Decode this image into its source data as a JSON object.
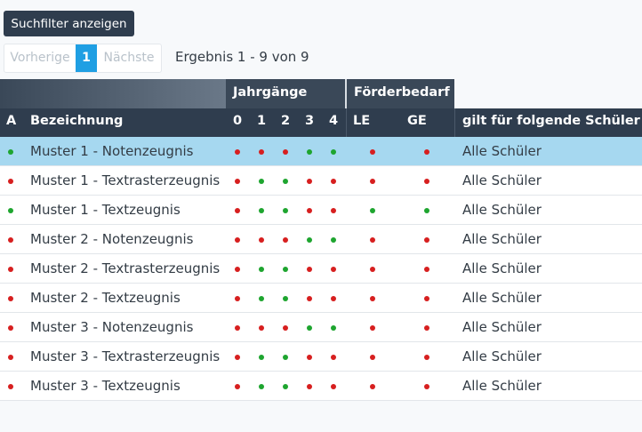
{
  "filter_button_label": "Suchfilter anzeigen",
  "pagination": {
    "prev": "Vorherige",
    "current": "1",
    "next": "Nächste"
  },
  "result_info": "Ergebnis 1 - 9 von 9",
  "table": {
    "group_headers": {
      "jahrgaenge": "Jahrgänge",
      "foerderbedarf": "Förderbedarf"
    },
    "columns": {
      "active": "A",
      "name": "Bezeichnung",
      "y0": "0",
      "y1": "1",
      "y2": "2",
      "y3": "3",
      "y4": "4",
      "le": "LE",
      "ge": "GE",
      "students": "gilt für folgende Schüler"
    },
    "status_colors": {
      "green": "#1ea52f",
      "red": "#d71f1f"
    },
    "rows": [
      {
        "selected": true,
        "active": "green",
        "name": "Muster 1 - Notenzeugnis",
        "y": [
          "red",
          "red",
          "red",
          "green",
          "green"
        ],
        "le": "red",
        "ge": "red",
        "students": "Alle Schüler"
      },
      {
        "selected": false,
        "active": "red",
        "name": "Muster 1 - Textrasterzeugnis",
        "y": [
          "red",
          "green",
          "green",
          "red",
          "red"
        ],
        "le": "red",
        "ge": "red",
        "students": "Alle Schüler"
      },
      {
        "selected": false,
        "active": "green",
        "name": "Muster 1 - Textzeugnis",
        "y": [
          "red",
          "green",
          "green",
          "red",
          "red"
        ],
        "le": "green",
        "ge": "green",
        "students": "Alle Schüler"
      },
      {
        "selected": false,
        "active": "red",
        "name": "Muster 2 - Notenzeugnis",
        "y": [
          "red",
          "red",
          "red",
          "green",
          "green"
        ],
        "le": "red",
        "ge": "red",
        "students": "Alle Schüler"
      },
      {
        "selected": false,
        "active": "red",
        "name": "Muster 2 - Textrasterzeugnis",
        "y": [
          "red",
          "green",
          "green",
          "red",
          "red"
        ],
        "le": "red",
        "ge": "red",
        "students": "Alle Schüler"
      },
      {
        "selected": false,
        "active": "red",
        "name": "Muster 2 - Textzeugnis",
        "y": [
          "red",
          "green",
          "green",
          "red",
          "red"
        ],
        "le": "red",
        "ge": "red",
        "students": "Alle Schüler"
      },
      {
        "selected": false,
        "active": "red",
        "name": "Muster 3 - Notenzeugnis",
        "y": [
          "red",
          "red",
          "red",
          "green",
          "green"
        ],
        "le": "red",
        "ge": "red",
        "students": "Alle Schüler"
      },
      {
        "selected": false,
        "active": "red",
        "name": "Muster 3 - Textrasterzeugnis",
        "y": [
          "red",
          "green",
          "green",
          "red",
          "red"
        ],
        "le": "red",
        "ge": "red",
        "students": "Alle Schüler"
      },
      {
        "selected": false,
        "active": "red",
        "name": "Muster 3 - Textzeugnis",
        "y": [
          "red",
          "green",
          "green",
          "red",
          "red"
        ],
        "le": "red",
        "ge": "red",
        "students": "Alle Schüler"
      }
    ]
  }
}
